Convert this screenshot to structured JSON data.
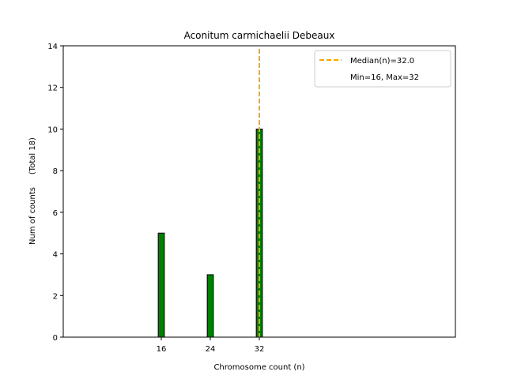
{
  "chart_data": {
    "type": "bar",
    "title": "Aconitum carmichaelii Debeaux",
    "xlabel": "Chromosome count (n)",
    "ylabel": "Num of counts     (Total 18)",
    "x": [
      16,
      24,
      32
    ],
    "values": [
      5,
      3,
      10
    ],
    "xticks": [
      "16",
      "24",
      "32"
    ],
    "yticks": [
      "0",
      "2",
      "4",
      "6",
      "8",
      "10",
      "12",
      "14"
    ],
    "xlim": [
      0,
      64
    ],
    "ylim": [
      0,
      14
    ],
    "bar_width": 1,
    "grid": false,
    "legend_position": "top-right",
    "median_line": {
      "x": 32.0,
      "label": "Median(n)=32.0"
    },
    "range_note": "Min=16, Max=32",
    "colors": {
      "bar": "#008000",
      "bar_edge": "#000000",
      "median": "#FFA500"
    }
  }
}
